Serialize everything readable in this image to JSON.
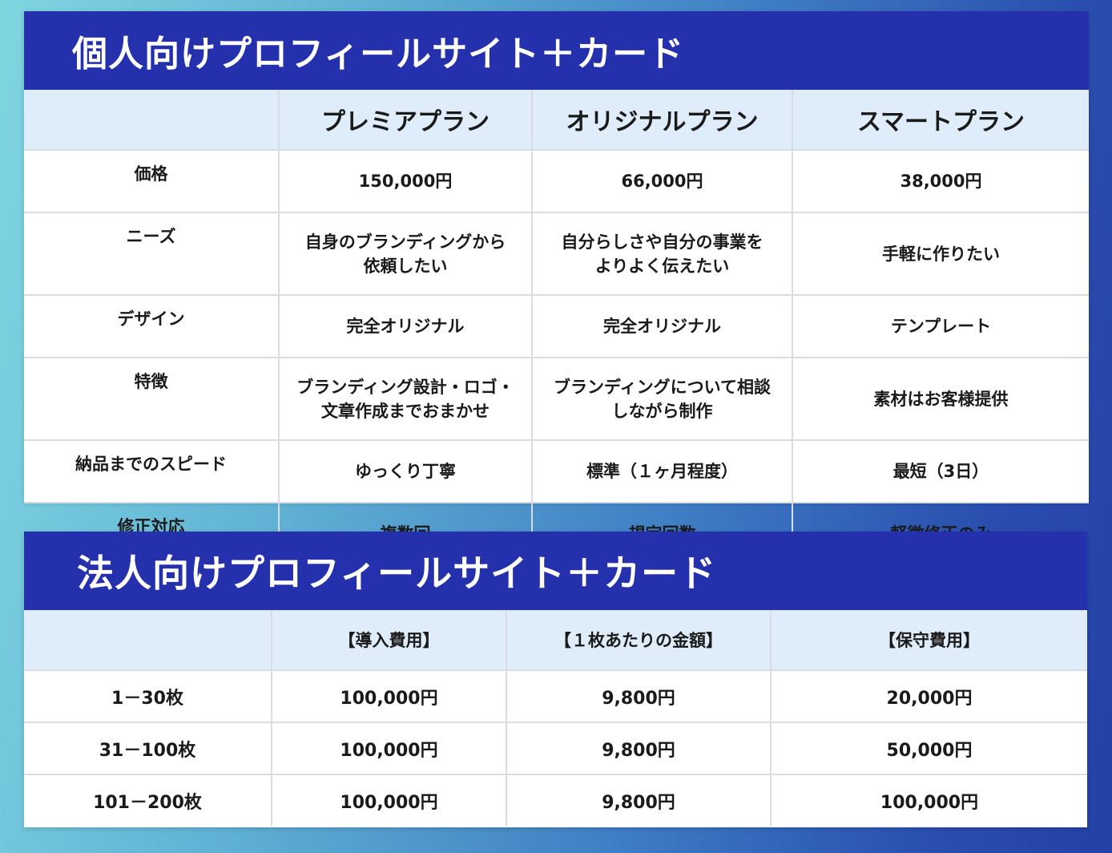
{
  "individual": {
    "title": "個人向けプロフィールサイト＋カード",
    "headers": [
      "",
      "プレミアプラン",
      "オリジナルプラン",
      "スマートプラン"
    ],
    "rows": [
      {
        "label": "価格",
        "cells": [
          "150,000円",
          "66,000円",
          "38,000円"
        ]
      },
      {
        "label": "ニーズ",
        "cells": [
          [
            "自身のブランディングから",
            "依頼したい"
          ],
          [
            "自分らしさや自分の事業を",
            "よりよく伝えたい"
          ],
          [
            "手軽に作りたい"
          ]
        ]
      },
      {
        "label": "デザイン",
        "cells": [
          "完全オリジナル",
          "完全オリジナル",
          "テンプレート"
        ]
      },
      {
        "label": "特徴",
        "cells": [
          [
            "ブランディング設計・ロゴ・",
            "文章作成までおまかせ"
          ],
          [
            "ブランディングについて相談",
            "しながら制作"
          ],
          [
            "素材はお客様提供"
          ]
        ]
      },
      {
        "label": "納品までのスピード",
        "cells": [
          "ゆっくり丁寧",
          "標準（１ヶ月程度）",
          "最短（3日）"
        ]
      },
      {
        "label": "修正対応",
        "cells": [
          "複数回",
          "規定回数",
          "軽微修正のみ"
        ]
      }
    ]
  },
  "corporate": {
    "title": "法人向けプロフィールサイト＋カード",
    "headers": [
      "",
      "【導入費用】",
      "【１枚あたりの金額】",
      "【保守費用】"
    ],
    "rows": [
      {
        "label": "1－30枚",
        "cells": [
          "100,000円",
          "9,800円",
          "20,000円"
        ]
      },
      {
        "label": "31－100枚",
        "cells": [
          "100,000円",
          "9,800円",
          "50,000円"
        ]
      },
      {
        "label": "101－200枚",
        "cells": [
          "100,000円",
          "9,800円",
          "100,000円"
        ]
      }
    ]
  },
  "colors": {
    "title_bar": "#2530ad",
    "header_row": "#deedf9",
    "grid": "#d8dde4"
  }
}
